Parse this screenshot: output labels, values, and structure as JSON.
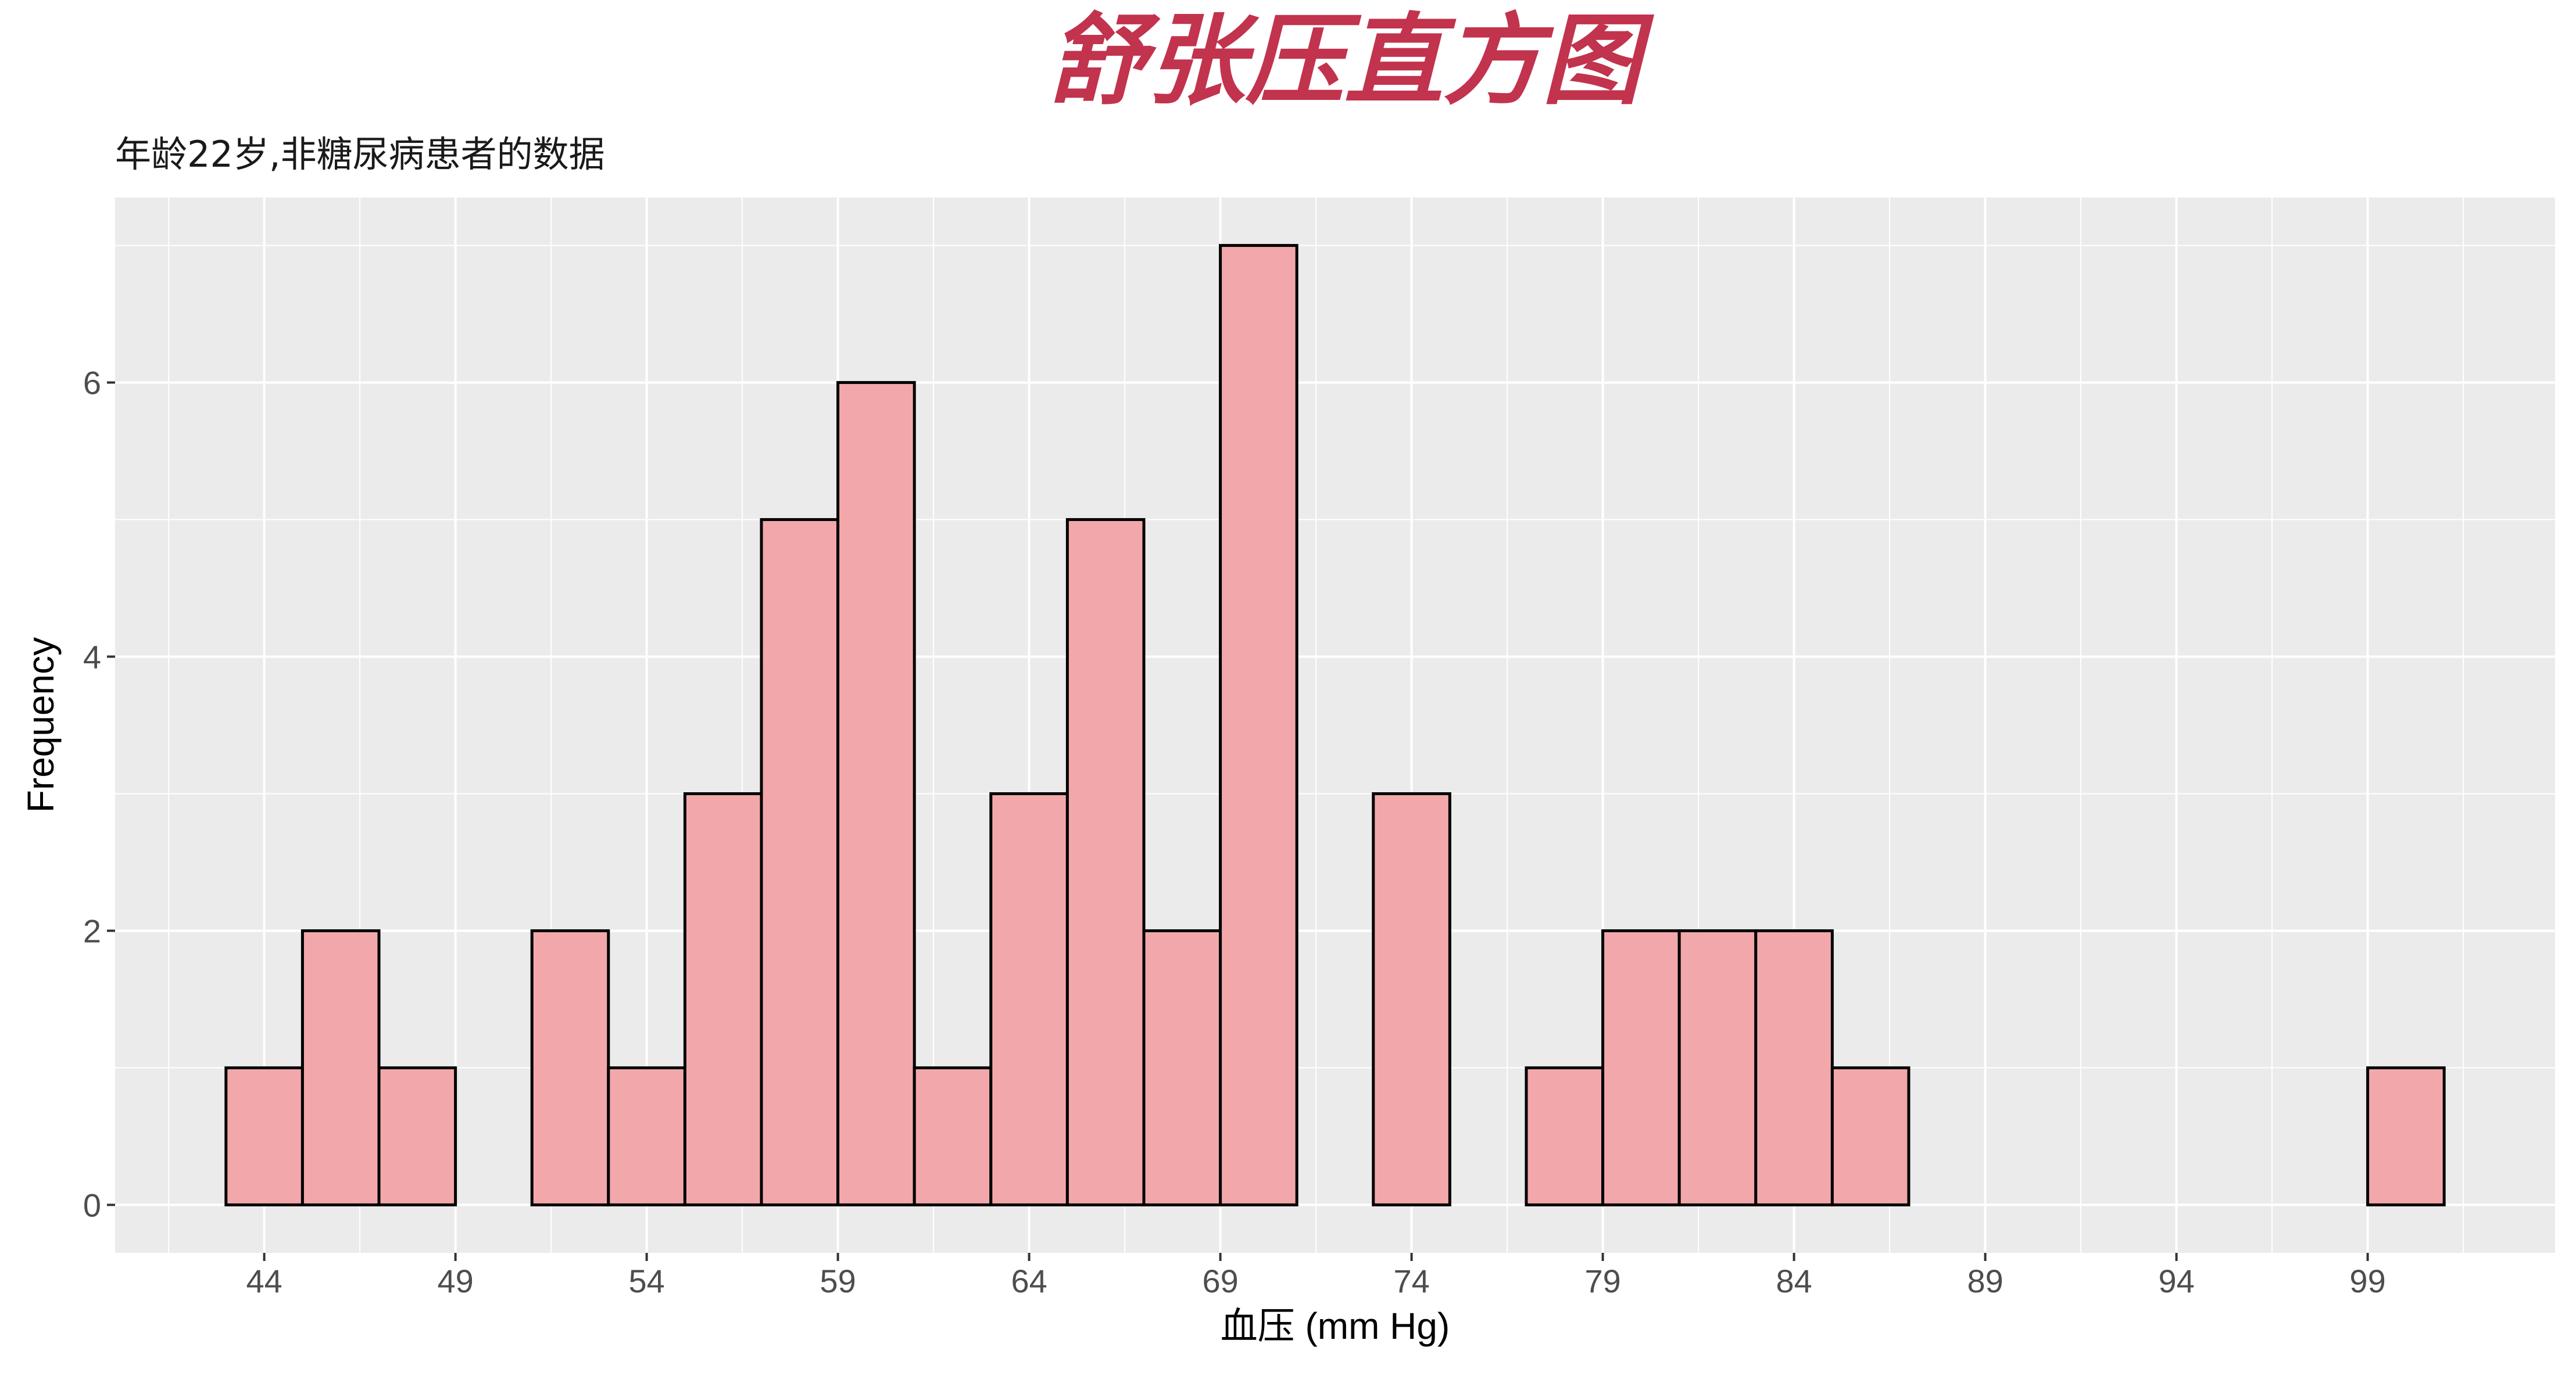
{
  "chart_data": {
    "type": "bar",
    "title": "舒张压直方图",
    "subtitle": "年龄22岁,非糖尿病患者的数据",
    "xlabel": "血压 (mm Hg)",
    "ylabel": "Frequency",
    "xlim": [
      40.1,
      103.9
    ],
    "ylim": [
      -0.35,
      7.35
    ],
    "x_ticks": [
      44,
      49,
      54,
      59,
      64,
      69,
      74,
      79,
      84,
      89,
      94,
      99
    ],
    "y_ticks": [
      0,
      2,
      4,
      6
    ],
    "bin_width": 2,
    "bin_starts": [
      43,
      45,
      47,
      49,
      51,
      53,
      55,
      57,
      59,
      61,
      63,
      65,
      67,
      69,
      71,
      73,
      75,
      77,
      79,
      81,
      83,
      85,
      87,
      89,
      91,
      93,
      95,
      97,
      99
    ],
    "values": [
      1,
      2,
      1,
      0,
      2,
      1,
      3,
      5,
      6,
      1,
      3,
      5,
      2,
      7,
      0,
      3,
      0,
      1,
      2,
      2,
      2,
      1,
      0,
      0,
      0,
      0,
      0,
      0,
      1
    ],
    "grid": true,
    "colors": {
      "bar_fill": "#F2A8AA",
      "bar_stroke": "#000000",
      "panel_background": "#EBEBEB",
      "grid": "#FFFFFF",
      "title": "#C2334D"
    }
  }
}
